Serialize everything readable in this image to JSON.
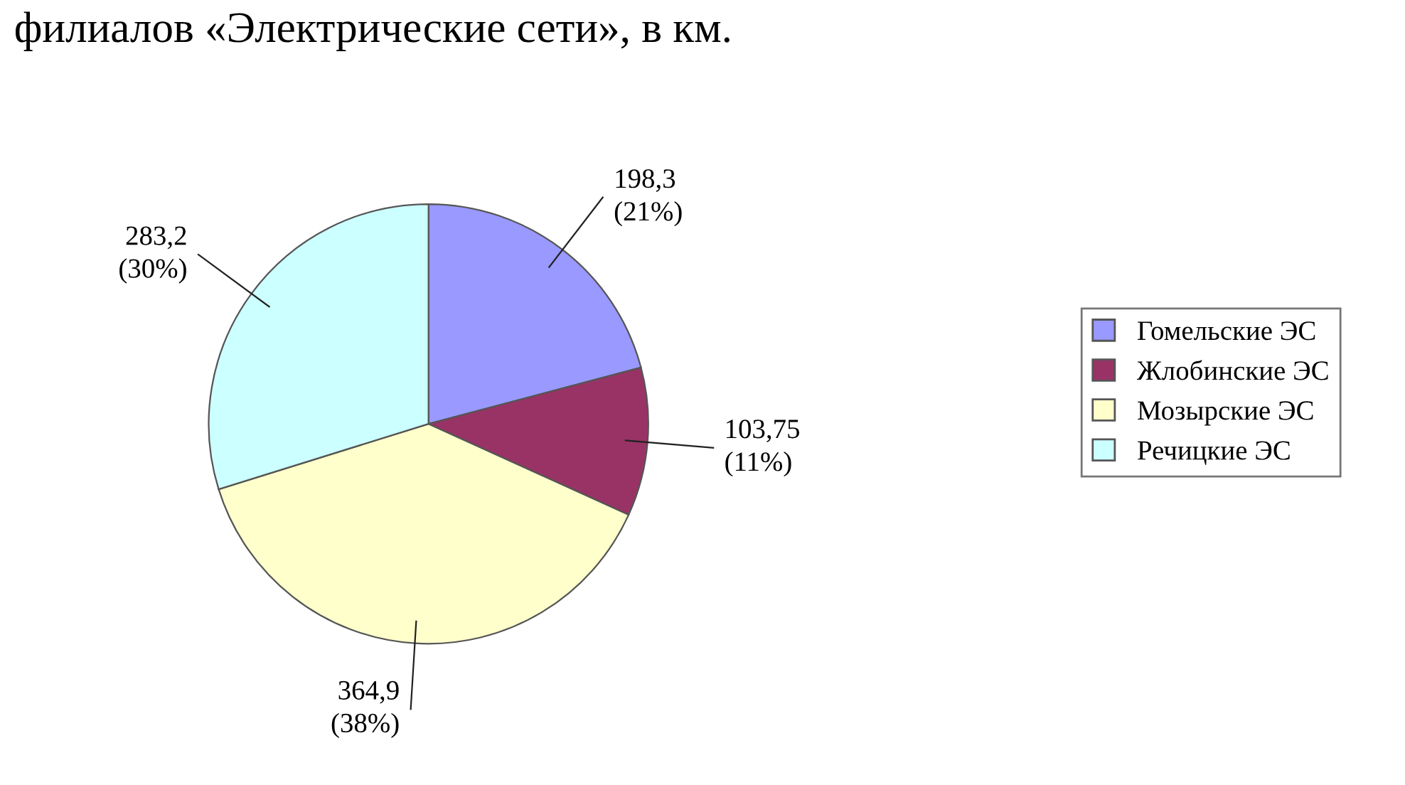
{
  "chart_data": {
    "type": "pie",
    "title": "филиалов «Электрические сети», в км.",
    "categories": [
      "Гомельские ЭС",
      "Жлобинские ЭС",
      "Мозырские ЭС",
      "Речицкие ЭС"
    ],
    "values": [
      198.3,
      103.75,
      364.9,
      283.2
    ],
    "colors": [
      "#9999ff",
      "#993366",
      "#ffffcc",
      "#ccffff"
    ],
    "value_labels": [
      "198,3\n(21%)",
      "103,75\n(11%)",
      "364,9\n(38%)",
      "283,2\n(30%)"
    ],
    "legend": "right"
  }
}
